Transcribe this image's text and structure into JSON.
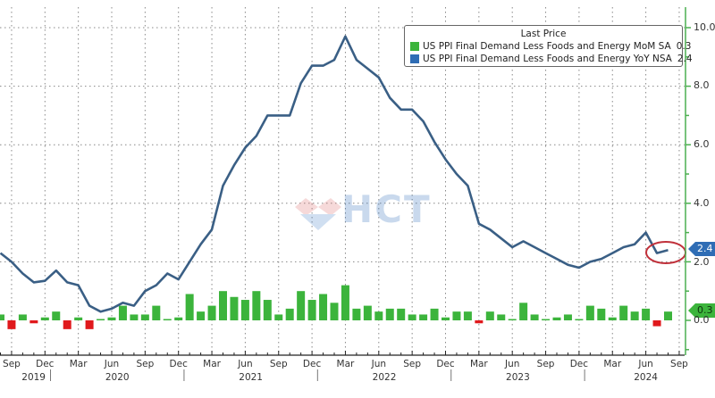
{
  "legend": {
    "title": "Last Price",
    "items": [
      {
        "label": "US PPI Final Demand Less Foods and Energy MoM SA",
        "value": "0.3",
        "color": "#3cb43c"
      },
      {
        "label": "US PPI Final Demand Less Foods and Energy YoY NSA",
        "value": "2.4",
        "color": "#2f6db5"
      }
    ]
  },
  "tags": {
    "yoy": "2.4",
    "mom": "0.3"
  },
  "y_ticks": [
    "10.0",
    "8.0",
    "6.0",
    "4.0",
    "2.0",
    "0.0"
  ],
  "x_ticks": [
    "Sep",
    "Dec",
    "Mar",
    "Jun",
    "Sep",
    "Dec",
    "Mar",
    "Jun",
    "Sep",
    "Dec",
    "Mar",
    "Jun",
    "Sep",
    "Dec",
    "Mar",
    "Jun",
    "Sep",
    "Dec",
    "Mar",
    "Jun",
    "Sep"
  ],
  "year_labels": [
    "2019",
    "2020",
    "2021",
    "2022",
    "2023",
    "2024"
  ],
  "watermark": "HCT",
  "colors": {
    "line": "#3a5f85",
    "bar_pos": "#3cb43c",
    "bar_neg": "#e0191c",
    "highlight": "#c0303a",
    "axis": "#4caf50"
  },
  "chart_data": {
    "type": "line+bar",
    "title": "",
    "xlabel": "",
    "ylabel": "",
    "ylim": [
      -1.0,
      10.5
    ],
    "grid": true,
    "legend_position": "top-right",
    "x": [
      "Aug 2019",
      "Sep 2019",
      "Oct 2019",
      "Nov 2019",
      "Dec 2019",
      "Jan 2020",
      "Feb 2020",
      "Mar 2020",
      "Apr 2020",
      "May 2020",
      "Jun 2020",
      "Jul 2020",
      "Aug 2020",
      "Sep 2020",
      "Oct 2020",
      "Nov 2020",
      "Dec 2020",
      "Jan 2021",
      "Feb 2021",
      "Mar 2021",
      "Apr 2021",
      "May 2021",
      "Jun 2021",
      "Jul 2021",
      "Aug 2021",
      "Sep 2021",
      "Oct 2021",
      "Nov 2021",
      "Dec 2021",
      "Jan 2022",
      "Feb 2022",
      "Mar 2022",
      "Apr 2022",
      "May 2022",
      "Jun 2022",
      "Jul 2022",
      "Aug 2022",
      "Sep 2022",
      "Oct 2022",
      "Nov 2022",
      "Dec 2022",
      "Jan 2023",
      "Feb 2023",
      "Mar 2023",
      "Apr 2023",
      "May 2023",
      "Jun 2023",
      "Jul 2023",
      "Aug 2023",
      "Sep 2023",
      "Oct 2023",
      "Nov 2023",
      "Dec 2023",
      "Jan 2024",
      "Feb 2024",
      "Mar 2024",
      "Apr 2024",
      "May 2024",
      "Jun 2024",
      "Jul 2024",
      "Aug 2024"
    ],
    "series": [
      {
        "name": "US PPI Final Demand Less Foods and Energy YoY NSA",
        "type": "line",
        "last": 2.4,
        "values": [
          2.3,
          2.0,
          1.6,
          1.3,
          1.35,
          1.7,
          1.3,
          1.2,
          0.5,
          0.3,
          0.4,
          0.6,
          0.5,
          1.0,
          1.2,
          1.6,
          1.4,
          2.0,
          2.6,
          3.1,
          4.6,
          5.3,
          5.9,
          6.3,
          7.0,
          7.0,
          7.0,
          8.1,
          8.7,
          8.7,
          8.9,
          9.7,
          8.9,
          8.6,
          8.3,
          7.6,
          7.2,
          7.2,
          6.8,
          6.1,
          5.5,
          5.0,
          4.6,
          3.3,
          3.1,
          2.8,
          2.5,
          2.7,
          2.5,
          2.3,
          2.1,
          1.9,
          1.8,
          2.0,
          2.1,
          2.3,
          2.5,
          2.6,
          3.0,
          2.3,
          2.4
        ]
      },
      {
        "name": "US PPI Final Demand Less Foods and Energy MoM SA",
        "type": "bar",
        "last": 0.3,
        "values": [
          0.2,
          -0.3,
          0.2,
          -0.1,
          0.1,
          0.3,
          -0.3,
          0.1,
          -0.3,
          0.0,
          0.1,
          0.5,
          0.2,
          0.2,
          0.5,
          0.0,
          0.1,
          0.9,
          0.3,
          0.5,
          1.0,
          0.8,
          0.7,
          1.0,
          0.7,
          0.2,
          0.4,
          1.0,
          0.7,
          0.9,
          0.6,
          1.2,
          0.4,
          0.5,
          0.3,
          0.4,
          0.4,
          0.2,
          0.2,
          0.4,
          0.1,
          0.3,
          0.3,
          -0.1,
          0.3,
          0.2,
          0.0,
          0.6,
          0.2,
          0.0,
          0.1,
          0.2,
          0.0,
          0.5,
          0.4,
          0.1,
          0.5,
          0.3,
          0.4,
          -0.2,
          0.3
        ]
      }
    ],
    "y_ticks": [
      0.0,
      2.0,
      4.0,
      6.0,
      8.0,
      10.0
    ],
    "x_tick_labels": [
      "Sep",
      "Dec",
      "Mar",
      "Jun",
      "Sep",
      "Dec",
      "Mar",
      "Jun",
      "Sep",
      "Dec",
      "Mar",
      "Jun",
      "Sep",
      "Dec",
      "Mar",
      "Jun",
      "Sep",
      "Dec",
      "Mar",
      "Jun",
      "Sep"
    ],
    "year_labels": [
      "2019",
      "2020",
      "2021",
      "2022",
      "2023",
      "2024"
    ],
    "annotations": [
      "red ellipse highlighting last two YoY points (Jul-Aug 2024)"
    ]
  }
}
